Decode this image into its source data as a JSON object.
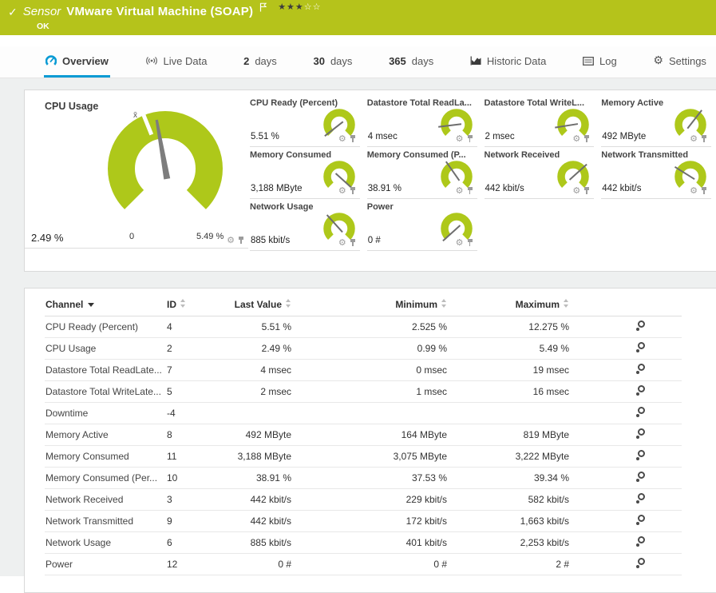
{
  "theme": {
    "header_green": "#b5c31b",
    "gauge_green": "#aec81a",
    "accent_blue": "#0a9bd4"
  },
  "header": {
    "kind_label": "Sensor",
    "title": "VMware Virtual Machine (SOAP)",
    "status": "OK",
    "stars_filled": "★★★",
    "stars_empty": "☆☆"
  },
  "tabs": [
    {
      "label": "Overview",
      "active": true
    },
    {
      "label": "Live Data"
    },
    {
      "number": "2",
      "label": "days"
    },
    {
      "number": "30",
      "label": "days"
    },
    {
      "number": "365",
      "label": "days"
    },
    {
      "label": "Historic Data"
    },
    {
      "label": "Log"
    },
    {
      "label": "Settings"
    }
  ],
  "main_gauge": {
    "title": "CPU Usage",
    "value": "2.49 %",
    "min_label": "0",
    "max_label": "5.49 %",
    "avg_marker": "x̄",
    "needle_angle_deg": -10
  },
  "gauges": [
    {
      "title": "CPU Ready (Percent)",
      "value": "5.51 %",
      "needle_angle_deg": -128
    },
    {
      "title": "Datastore Total ReadLa...",
      "value": "4 msec",
      "needle_angle_deg": -97
    },
    {
      "title": "Datastore Total WriteL...",
      "value": "2 msec",
      "needle_angle_deg": -99
    },
    {
      "title": "Memory Active",
      "value": "492 MByte",
      "needle_angle_deg": 38
    },
    {
      "title": "Memory Consumed",
      "value": "3,188 MByte",
      "needle_angle_deg": 132
    },
    {
      "title": "Memory Consumed (P...",
      "value": "38.91 %",
      "needle_angle_deg": -35
    },
    {
      "title": "Network Received",
      "value": "442 kbit/s",
      "needle_angle_deg": 48
    },
    {
      "title": "Network Transmitted",
      "value": "442 kbit/s",
      "needle_angle_deg": -58
    },
    {
      "title": "Network Usage",
      "value": "885 kbit/s",
      "needle_angle_deg": -42
    },
    {
      "title": "Power",
      "value": "0 #",
      "needle_angle_deg": -132
    }
  ],
  "table": {
    "columns": [
      "Channel",
      "ID",
      "Last Value",
      "Minimum",
      "Maximum"
    ],
    "sorted_by": "Channel",
    "rows": [
      [
        "CPU Ready (Percent)",
        "4",
        "5.51 %",
        "2.525 %",
        "12.275 %"
      ],
      [
        "CPU Usage",
        "2",
        "2.49 %",
        "0.99 %",
        "5.49 %"
      ],
      [
        "Datastore Total ReadLate...",
        "7",
        "4 msec",
        "0 msec",
        "19 msec"
      ],
      [
        "Datastore Total WriteLate...",
        "5",
        "2 msec",
        "1 msec",
        "16 msec"
      ],
      [
        "Downtime",
        "-4",
        "",
        "",
        ""
      ],
      [
        "Memory Active",
        "8",
        "492 MByte",
        "164 MByte",
        "819 MByte"
      ],
      [
        "Memory Consumed",
        "11",
        "3,188 MByte",
        "3,075 MByte",
        "3,222 MByte"
      ],
      [
        "Memory Consumed (Per...",
        "10",
        "38.91 %",
        "37.53 %",
        "39.34 %"
      ],
      [
        "Network Received",
        "3",
        "442 kbit/s",
        "229 kbit/s",
        "582 kbit/s"
      ],
      [
        "Network Transmitted",
        "9",
        "442 kbit/s",
        "172 kbit/s",
        "1,663 kbit/s"
      ],
      [
        "Network Usage",
        "6",
        "885 kbit/s",
        "401 kbit/s",
        "2,253 kbit/s"
      ],
      [
        "Power",
        "12",
        "0 #",
        "0 #",
        "2 #"
      ]
    ]
  }
}
